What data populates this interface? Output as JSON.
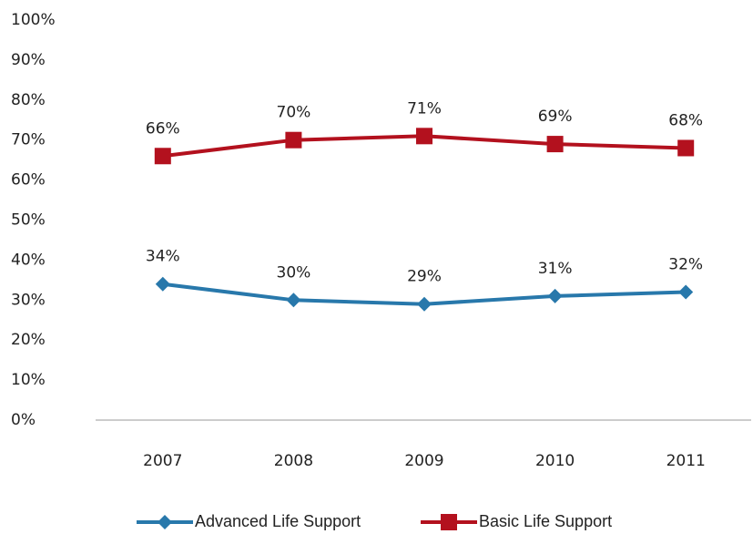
{
  "chart_data": {
    "type": "line",
    "categories": [
      "2007",
      "2008",
      "2009",
      "2010",
      "2011"
    ],
    "series": [
      {
        "name": "Advanced Life Support",
        "color": "#2878ab",
        "marker": "diamond",
        "values": [
          34,
          30,
          29,
          31,
          32
        ],
        "value_labels": [
          "34%",
          "30%",
          "29%",
          "31%",
          "32%"
        ]
      },
      {
        "name": "Basic Life Support",
        "color": "#b3111e",
        "marker": "square",
        "values": [
          66,
          70,
          71,
          69,
          68
        ],
        "value_labels": [
          "66%",
          "70%",
          "71%",
          "69%",
          "68%"
        ]
      }
    ],
    "ylim": [
      0,
      100
    ],
    "yticks": [
      {
        "value": 0,
        "label": "0%"
      },
      {
        "value": 10,
        "label": "10%"
      },
      {
        "value": 20,
        "label": "20%"
      },
      {
        "value": 30,
        "label": "30%"
      },
      {
        "value": 40,
        "label": "40%"
      },
      {
        "value": 50,
        "label": "50%"
      },
      {
        "value": 60,
        "label": "60%"
      },
      {
        "value": 70,
        "label": "70%"
      },
      {
        "value": 80,
        "label": "80%"
      },
      {
        "value": 90,
        "label": "90%"
      },
      {
        "value": 100,
        "label": "100%"
      }
    ],
    "grid": false,
    "legend": "bottom"
  }
}
